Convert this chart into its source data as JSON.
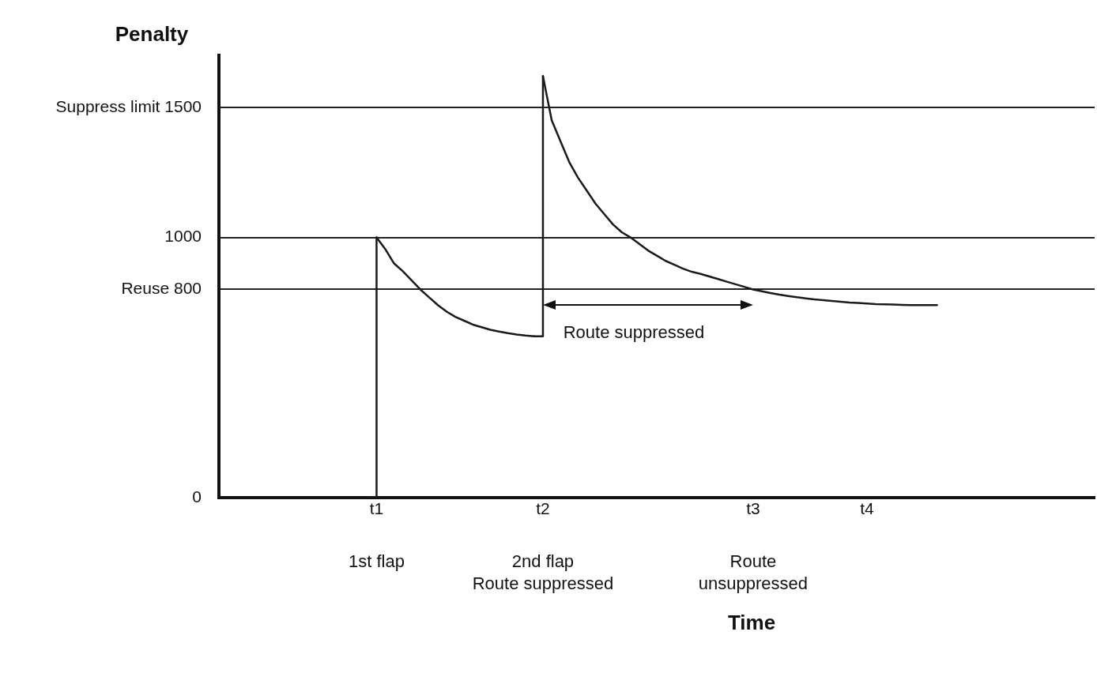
{
  "chart_data": {
    "type": "line",
    "xlabel": "Time",
    "ylabel": "Penalty",
    "categories": [
      null,
      null,
      null,
      null,
      null,
      null,
      null,
      null,
      null,
      null,
      null,
      null,
      null,
      null,
      null,
      null,
      null,
      null,
      "t1",
      null,
      null,
      null,
      null,
      null,
      null,
      null,
      null,
      null,
      null,
      null,
      null,
      null,
      null,
      null,
      null,
      null,
      null,
      "t2",
      null,
      null,
      null,
      null,
      null,
      null,
      null,
      null,
      null,
      null,
      null,
      null,
      null,
      null,
      null,
      null,
      null,
      null,
      null,
      null,
      null,
      null,
      null,
      "t3",
      null,
      null,
      null,
      null,
      null,
      null,
      null,
      null,
      null,
      null,
      null,
      null,
      "t4",
      null,
      null,
      null,
      null,
      null,
      null,
      null,
      null,
      null,
      null,
      null,
      null,
      null,
      null,
      null,
      null,
      null,
      null,
      null,
      null,
      null,
      null,
      null,
      null,
      null,
      null
    ],
    "series": [
      {
        "type": "step",
        "color": "#1a1a1a",
        "values": [
          null,
          null,
          null,
          null,
          null,
          null,
          null,
          null,
          null,
          null,
          null,
          null,
          null,
          null,
          null,
          null,
          null,
          0,
          1000,
          null,
          null,
          null,
          null,
          null,
          null,
          null,
          null,
          null,
          null,
          null,
          null,
          null,
          null,
          null,
          null,
          null,
          620,
          1620,
          null,
          null,
          null,
          null,
          null,
          null,
          null,
          null,
          null,
          null,
          null,
          null,
          null,
          null,
          null,
          null,
          null,
          null,
          null,
          null,
          null,
          null,
          null,
          null,
          null,
          null,
          null,
          null,
          null,
          null,
          null,
          null,
          null,
          null,
          null,
          null,
          null,
          null,
          null,
          null,
          null,
          null,
          null,
          null,
          null,
          null,
          null,
          null,
          null,
          null,
          null,
          null,
          null,
          null,
          null,
          null,
          null,
          null,
          null,
          null,
          null,
          null,
          null
        ]
      },
      {
        "color": "#1a1a1a",
        "values": [
          null,
          null,
          null,
          null,
          null,
          null,
          null,
          null,
          null,
          null,
          null,
          null,
          null,
          null,
          null,
          null,
          null,
          null,
          1000,
          955,
          900,
          870,
          835,
          800,
          770,
          740,
          715,
          695,
          680,
          665,
          655,
          645,
          638,
          632,
          627,
          623,
          620,
          null,
          null,
          null,
          null,
          null,
          null,
          null,
          null,
          null,
          null,
          null,
          null,
          null,
          null,
          null,
          null,
          null,
          null,
          null,
          null,
          null,
          null,
          null,
          null,
          null,
          null,
          null,
          null,
          null,
          null,
          null,
          null,
          null,
          null,
          null,
          null,
          null,
          null,
          null,
          null,
          null,
          null,
          null,
          null,
          null,
          null,
          null,
          null,
          null,
          null,
          null,
          null,
          null,
          null,
          null,
          null,
          null,
          null,
          null,
          null,
          null,
          null,
          null,
          null
        ]
      },
      {
        "color": "#1a1a1a",
        "values": [
          null,
          null,
          null,
          null,
          null,
          null,
          null,
          null,
          null,
          null,
          null,
          null,
          null,
          null,
          null,
          null,
          null,
          null,
          null,
          null,
          null,
          null,
          null,
          null,
          null,
          null,
          null,
          null,
          null,
          null,
          null,
          null,
          null,
          null,
          null,
          null,
          null,
          1620,
          1450,
          1370,
          1290,
          1230,
          1180,
          1130,
          1090,
          1050,
          1020,
          1000,
          975,
          950,
          930,
          910,
          895,
          880,
          868,
          860,
          850,
          840,
          830,
          820,
          810,
          800,
          793,
          786,
          780,
          775,
          770,
          766,
          762,
          759,
          756,
          753,
          750,
          748,
          746,
          744,
          743,
          742,
          741,
          740,
          740,
          740,
          740,
          null,
          null,
          null,
          null,
          null,
          null,
          null,
          null,
          null,
          null,
          null,
          null,
          null,
          null,
          null,
          null,
          null,
          null
        ]
      }
    ],
    "ylim": [
      0,
      1700
    ],
    "yticks": [
      0,
      {
        "value": 800,
        "label": "Reuse 800"
      },
      1000,
      {
        "value": 1500,
        "label": "Suppress limit 1500"
      }
    ],
    "grid": "y",
    "legend": false,
    "marker": "none",
    "line_style": "solid",
    "annotations": [
      "Route suppressed",
      "1st flap",
      "2nd flap\nRoute suppressed",
      "Route\nunsuppressed"
    ]
  }
}
